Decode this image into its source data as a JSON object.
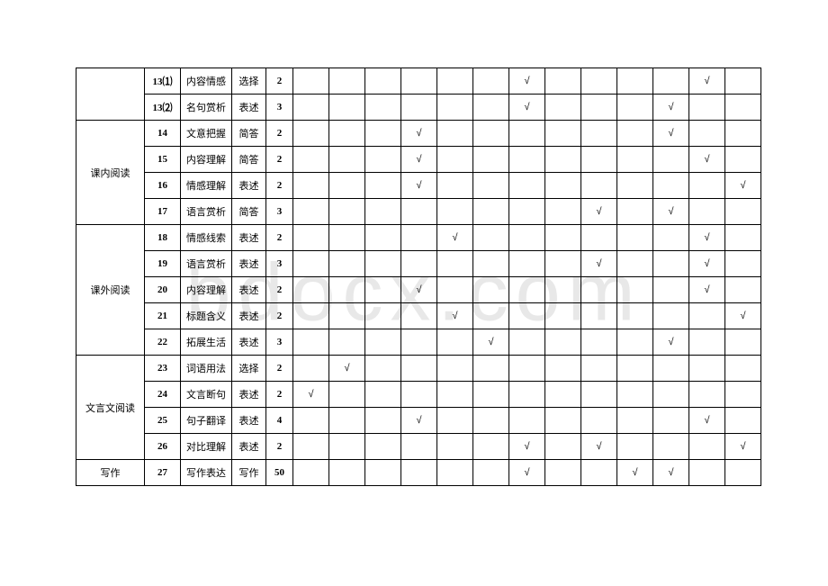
{
  "watermark": "bdocx.com",
  "checkmark": "√",
  "sections": {
    "s1": "",
    "s2": "课内阅读",
    "s3": "课外阅读",
    "s4": "文言文阅读",
    "s5": "写作"
  },
  "rows": [
    {
      "num": "13⑴",
      "topic": "内容情感",
      "type": "选择",
      "score": "2",
      "checks": [
        0,
        0,
        0,
        0,
        0,
        0,
        1,
        0,
        0,
        0,
        0,
        1,
        0
      ]
    },
    {
      "num": "13⑵",
      "topic": "名句赏析",
      "type": "表述",
      "score": "3",
      "checks": [
        0,
        0,
        0,
        0,
        0,
        0,
        1,
        0,
        0,
        0,
        1,
        0,
        0
      ]
    },
    {
      "num": "14",
      "topic": "文意把握",
      "type": "简答",
      "score": "2",
      "checks": [
        0,
        0,
        0,
        1,
        0,
        0,
        0,
        0,
        0,
        0,
        1,
        0,
        0
      ]
    },
    {
      "num": "15",
      "topic": "内容理解",
      "type": "简答",
      "score": "2",
      "checks": [
        0,
        0,
        0,
        1,
        0,
        0,
        0,
        0,
        0,
        0,
        0,
        1,
        0
      ]
    },
    {
      "num": "16",
      "topic": "情感理解",
      "type": "表述",
      "score": "2",
      "checks": [
        0,
        0,
        0,
        1,
        0,
        0,
        0,
        0,
        0,
        0,
        0,
        0,
        1
      ]
    },
    {
      "num": "17",
      "topic": "语言赏析",
      "type": "简答",
      "score": "3",
      "checks": [
        0,
        0,
        0,
        0,
        0,
        0,
        0,
        0,
        1,
        0,
        1,
        0,
        0
      ]
    },
    {
      "num": "18",
      "topic": "情感线索",
      "type": "表述",
      "score": "2",
      "checks": [
        0,
        0,
        0,
        0,
        1,
        0,
        0,
        0,
        0,
        0,
        0,
        1,
        0
      ]
    },
    {
      "num": "19",
      "topic": "语言赏析",
      "type": "表述",
      "score": "3",
      "checks": [
        0,
        0,
        0,
        0,
        0,
        0,
        0,
        0,
        1,
        0,
        0,
        1,
        0
      ]
    },
    {
      "num": "20",
      "topic": "内容理解",
      "type": "表述",
      "score": "2",
      "checks": [
        0,
        0,
        0,
        1,
        0,
        0,
        0,
        0,
        0,
        0,
        0,
        1,
        0
      ]
    },
    {
      "num": "21",
      "topic": "标题含义",
      "type": "表述",
      "score": "2",
      "checks": [
        0,
        0,
        0,
        0,
        1,
        0,
        0,
        0,
        0,
        0,
        0,
        0,
        1
      ]
    },
    {
      "num": "22",
      "topic": "拓展生活",
      "type": "表述",
      "score": "3",
      "checks": [
        0,
        0,
        0,
        0,
        0,
        1,
        0,
        0,
        0,
        0,
        1,
        0,
        0
      ]
    },
    {
      "num": "23",
      "topic": "词语用法",
      "type": "选择",
      "score": "2",
      "checks": [
        0,
        1,
        0,
        0,
        0,
        0,
        0,
        0,
        0,
        0,
        0,
        0,
        0
      ]
    },
    {
      "num": "24",
      "topic": "文言断句",
      "type": "表述",
      "score": "2",
      "checks": [
        1,
        0,
        0,
        0,
        0,
        0,
        0,
        0,
        0,
        0,
        0,
        0,
        0
      ]
    },
    {
      "num": "25",
      "topic": "句子翻译",
      "type": "表述",
      "score": "4",
      "checks": [
        0,
        0,
        0,
        1,
        0,
        0,
        0,
        0,
        0,
        0,
        0,
        1,
        0
      ]
    },
    {
      "num": "26",
      "topic": "对比理解",
      "type": "表述",
      "score": "2",
      "checks": [
        0,
        0,
        0,
        0,
        0,
        0,
        1,
        0,
        1,
        0,
        0,
        0,
        1
      ]
    },
    {
      "num": "27",
      "topic": "写作表达",
      "type": "写作",
      "score": "50",
      "checks": [
        0,
        0,
        0,
        0,
        0,
        0,
        1,
        0,
        0,
        1,
        1,
        0,
        0
      ]
    }
  ]
}
